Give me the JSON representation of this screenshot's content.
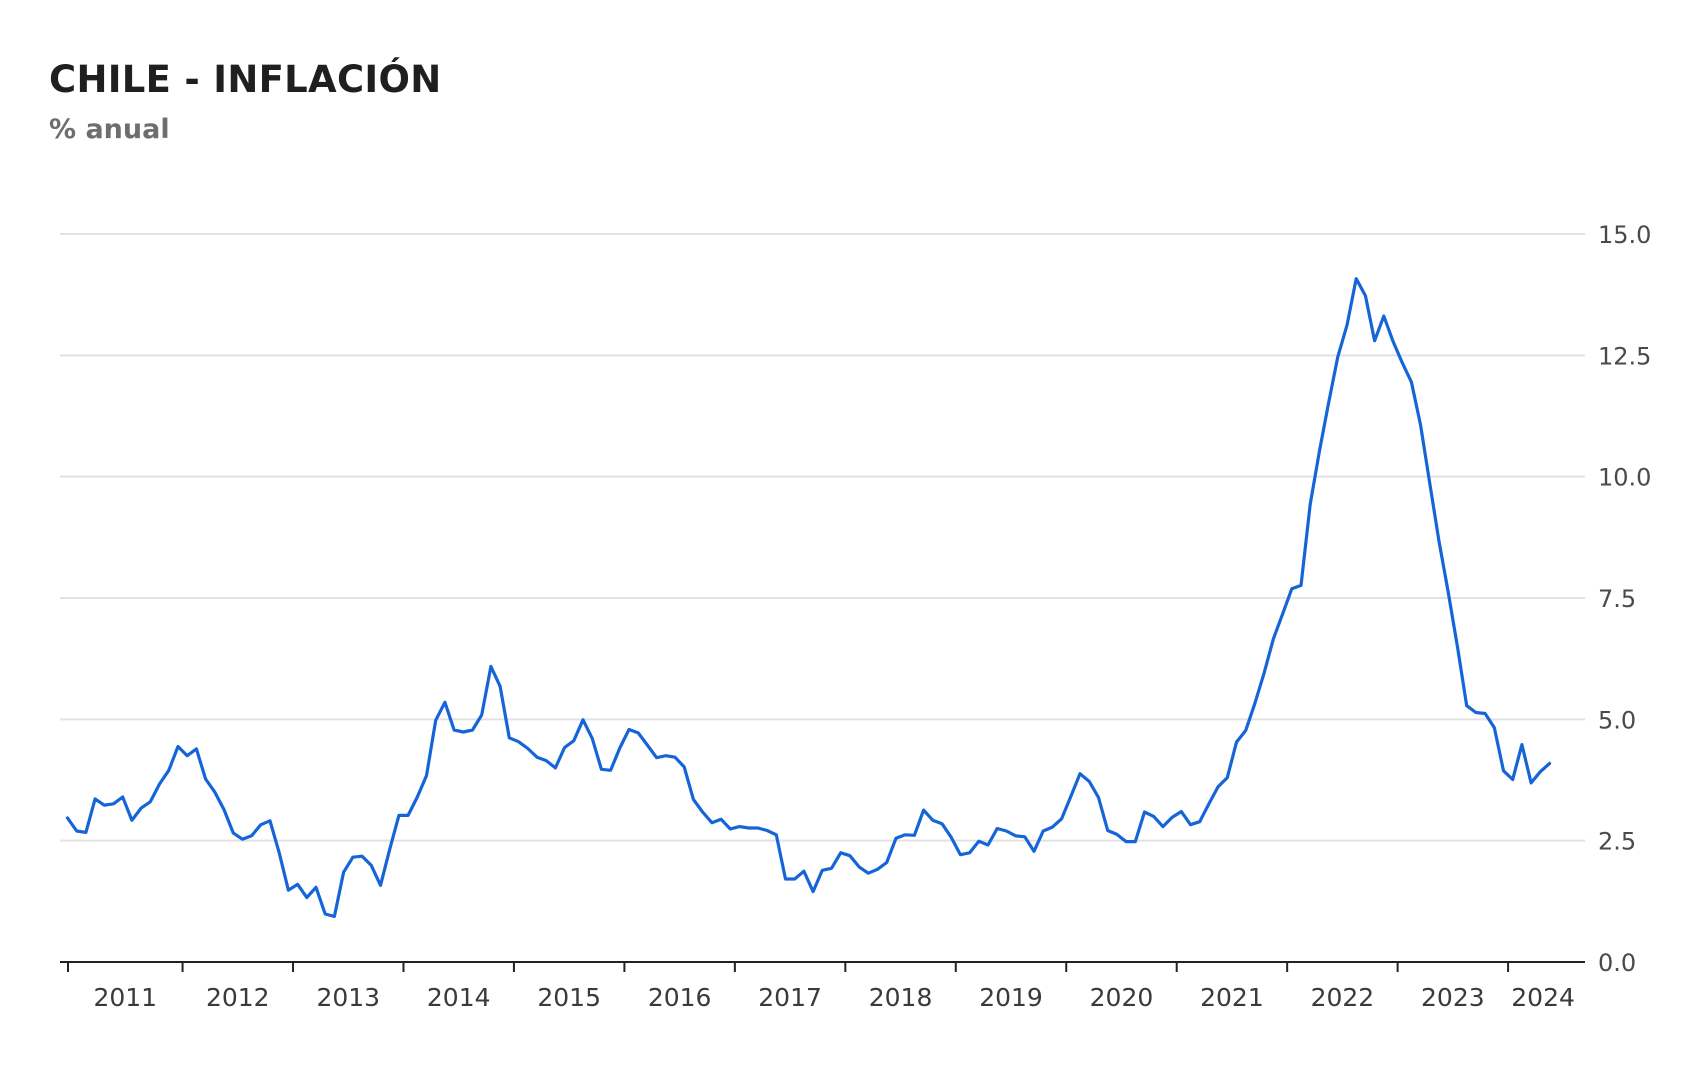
{
  "title": "CHILE - INFLACIÓN",
  "subtitle": "% anual",
  "chart_data": {
    "type": "line",
    "title": "CHILE - INFLACIÓN",
    "subtitle": "% anual",
    "ylim": [
      0,
      15
    ],
    "yticks": [
      "0.0",
      "2.5",
      "5.0",
      "7.5",
      "10.0",
      "12.5",
      "15.0"
    ],
    "ytick_values": [
      0,
      2.5,
      5,
      7.5,
      10,
      12.5,
      15
    ],
    "y_axis_side": "right",
    "grid": true,
    "x_tick_labels": [
      "2011",
      "2012",
      "2013",
      "2014",
      "2015",
      "2016",
      "2017",
      "2018",
      "2019",
      "2020",
      "2021",
      "2022",
      "2023",
      "2024"
    ],
    "x_start": "2010-12",
    "series_color": "#1565d8",
    "series": [
      {
        "values": [
          2.97,
          2.7,
          2.67,
          3.36,
          3.23,
          3.26,
          3.4,
          2.92,
          3.17,
          3.3,
          3.67,
          3.95,
          4.44,
          4.25,
          4.39,
          3.77,
          3.5,
          3.14,
          2.66,
          2.53,
          2.6,
          2.83,
          2.91,
          2.25,
          1.48,
          1.6,
          1.33,
          1.54,
          0.99,
          0.94,
          1.85,
          2.16,
          2.18,
          1.99,
          1.58,
          2.32,
          3.02,
          3.02,
          3.4,
          3.84,
          4.98,
          5.35,
          4.78,
          4.74,
          4.78,
          5.09,
          6.09,
          5.68,
          4.62,
          4.54,
          4.4,
          4.22,
          4.15,
          4.0,
          4.42,
          4.56,
          4.99,
          4.61,
          3.97,
          3.95,
          4.41,
          4.79,
          4.72,
          4.47,
          4.21,
          4.25,
          4.22,
          4.02,
          3.35,
          3.09,
          2.87,
          2.94,
          2.74,
          2.79,
          2.76,
          2.76,
          2.71,
          2.62,
          1.71,
          1.71,
          1.87,
          1.45,
          1.89,
          1.93,
          2.25,
          2.19,
          1.96,
          1.83,
          1.91,
          2.05,
          2.55,
          2.62,
          2.61,
          3.13,
          2.92,
          2.85,
          2.57,
          2.21,
          2.25,
          2.49,
          2.41,
          2.75,
          2.7,
          2.6,
          2.58,
          2.28,
          2.7,
          2.78,
          2.95,
          3.41,
          3.88,
          3.72,
          3.39,
          2.71,
          2.63,
          2.48,
          2.48,
          3.09,
          3.0,
          2.79,
          2.98,
          3.1,
          2.83,
          2.89,
          3.26,
          3.61,
          3.8,
          4.53,
          4.77,
          5.33,
          5.96,
          6.66,
          7.17,
          7.69,
          7.76,
          9.43,
          10.52,
          11.52,
          12.47,
          13.12,
          14.08,
          13.73,
          12.8,
          13.31,
          12.79,
          12.35,
          11.95,
          11.06,
          9.86,
          8.67,
          7.61,
          6.49,
          5.28,
          5.14,
          5.12,
          4.83,
          3.94,
          3.76,
          4.48,
          3.69,
          3.92,
          4.09
        ]
      }
    ]
  }
}
